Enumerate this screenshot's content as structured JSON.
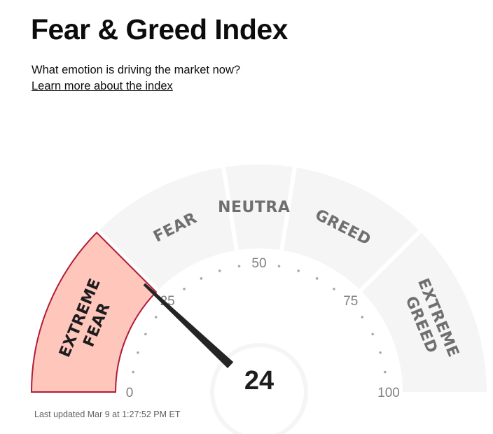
{
  "header": {
    "title": "Fear & Greed Index",
    "subtitle": "What emotion is driving the market now?",
    "learn_more": "Learn more about the index"
  },
  "gauge": {
    "value": 24,
    "value_text": "24",
    "scale": [
      0,
      100
    ],
    "active_segment": 0,
    "segments": [
      {
        "lines": [
          "EXTREME",
          "FEAR"
        ],
        "range": [
          0,
          25
        ]
      },
      {
        "lines": [
          "FEAR"
        ],
        "range": [
          25,
          45
        ]
      },
      {
        "lines": [
          "NEUTRAL"
        ],
        "range": [
          45,
          55
        ]
      },
      {
        "lines": [
          "GREED"
        ],
        "range": [
          55,
          75
        ]
      },
      {
        "lines": [
          "EXTREME",
          "GREED"
        ],
        "range": [
          75,
          100
        ]
      }
    ],
    "tick_labels": [
      "0",
      "25",
      "50",
      "75",
      "100"
    ],
    "colors": {
      "active_fill": "#ffc6bc",
      "active_stroke": "#b01c38",
      "inactive_fill": "#f5f5f5",
      "needle": "#242424",
      "dot": "#a8a8a8"
    }
  },
  "footer": {
    "last_updated": "Last updated Mar 9 at 1:27:52 PM ET"
  }
}
